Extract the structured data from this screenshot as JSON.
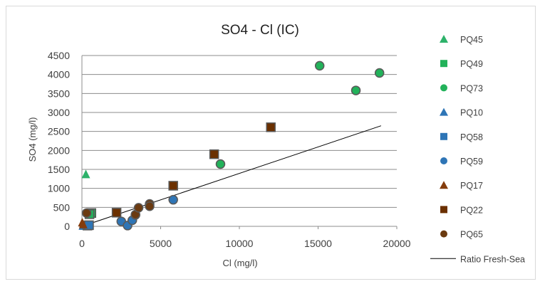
{
  "chart_data": {
    "type": "scatter",
    "title": "SO4 - Cl (IC)",
    "xlabel": "Cl (mg/l)",
    "ylabel": "SO4 (mg/l)",
    "xlim": [
      0,
      20000
    ],
    "ylim": [
      0,
      4500
    ],
    "xticks": [
      0,
      5000,
      10000,
      15000,
      20000
    ],
    "yticks": [
      0,
      500,
      1000,
      1500,
      2000,
      2500,
      3000,
      3500,
      4000,
      4500
    ],
    "grid": "horizontal",
    "legend_position": "right",
    "series": [
      {
        "name": "PQ45",
        "marker": "triangle",
        "color": "#2db26a",
        "points": [
          [
            250,
            1380
          ],
          [
            150,
            20
          ]
        ]
      },
      {
        "name": "PQ49",
        "marker": "square",
        "color": "#22b25a",
        "points": [
          [
            600,
            350
          ],
          [
            480,
            320
          ]
        ]
      },
      {
        "name": "PQ73",
        "marker": "circle",
        "color": "#22b25a",
        "points": [
          [
            15100,
            4230
          ],
          [
            17400,
            3580
          ],
          [
            18900,
            4040
          ],
          [
            8800,
            1640
          ]
        ]
      },
      {
        "name": "PQ10",
        "marker": "triangle",
        "color": "#2e75b6",
        "points": [
          [
            60,
            20
          ],
          [
            120,
            30
          ]
        ]
      },
      {
        "name": "PQ58",
        "marker": "square",
        "color": "#2e75b6",
        "points": [
          [
            350,
            20
          ],
          [
            450,
            30
          ]
        ]
      },
      {
        "name": "PQ59",
        "marker": "circle",
        "color": "#2e75b6",
        "points": [
          [
            2500,
            130
          ],
          [
            2900,
            20
          ],
          [
            3200,
            160
          ],
          [
            3400,
            300
          ],
          [
            5800,
            700
          ]
        ]
      },
      {
        "name": "PQ17",
        "marker": "triangle",
        "color": "#843c0c",
        "points": [
          [
            20,
            110
          ],
          [
            80,
            60
          ]
        ]
      },
      {
        "name": "PQ22",
        "marker": "square",
        "color": "#6b3000",
        "points": [
          [
            2200,
            360
          ],
          [
            5800,
            1070
          ],
          [
            8400,
            1900
          ],
          [
            12000,
            2610
          ]
        ]
      },
      {
        "name": "PQ65",
        "marker": "circle",
        "color": "#6b3a10",
        "points": [
          [
            300,
            350
          ],
          [
            3400,
            310
          ],
          [
            3600,
            490
          ],
          [
            4300,
            590
          ],
          [
            4300,
            530
          ]
        ]
      }
    ],
    "reference_line": {
      "name": "Ratio Fresh-Sea",
      "color": "#000000",
      "points": [
        [
          0,
          0
        ],
        [
          19000,
          2650
        ]
      ]
    }
  }
}
